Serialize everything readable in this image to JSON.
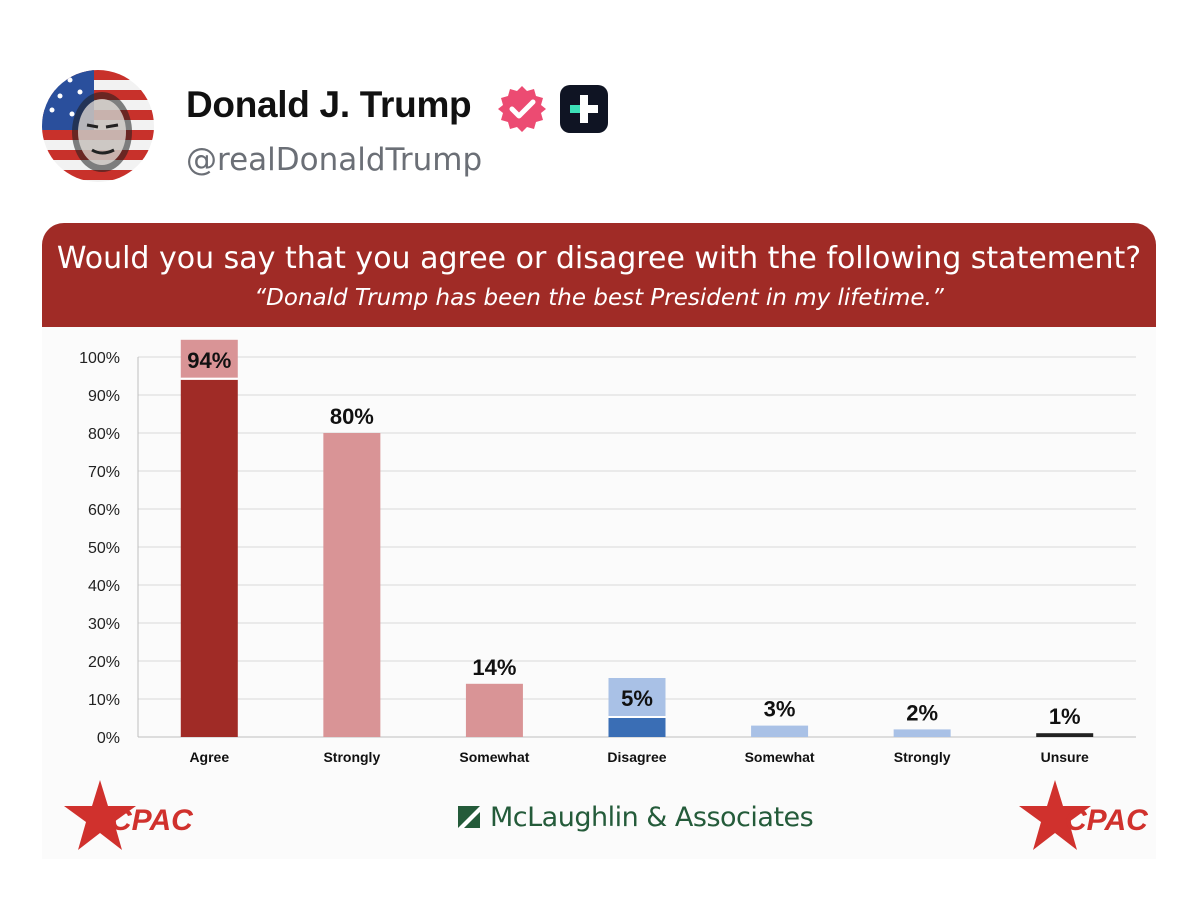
{
  "post": {
    "author_name": "Donald J. Trump",
    "handle": "@realDonaldTrump",
    "avatar_icon": "profile-avatar-flag-portrait",
    "verified_icon": "verified-badge-icon",
    "badge_icon": "plus-badge-icon"
  },
  "card": {
    "question": "Would you say that you agree or disagree with the following statement?",
    "statement": "“Donald Trump has been the best President in my lifetime.”",
    "footer_left_logo": "CPAC",
    "footer_center": "McLaughlin & Associates",
    "footer_right_logo": "CPAC"
  },
  "colors": {
    "banner": "#a02b26",
    "agree_dark": "#a02b26",
    "agree_light": "#d99496",
    "disagree_dark": "#3a6eb5",
    "disagree_light": "#a9c1e6",
    "unsure": "#222222"
  },
  "chart_data": {
    "type": "bar",
    "title": "",
    "xlabel": "",
    "ylabel": "",
    "ylim": [
      0,
      100
    ],
    "yticks": [
      "0%",
      "10%",
      "20%",
      "30%",
      "40%",
      "50%",
      "60%",
      "70%",
      "80%",
      "90%",
      "100%"
    ],
    "grid": true,
    "categories": [
      "Agree",
      "Strongly",
      "Somewhat",
      "Disagree",
      "Somewhat",
      "Strongly",
      "Unsure"
    ],
    "values": [
      94,
      80,
      14,
      5,
      3,
      2,
      1
    ],
    "labels": [
      "94%",
      "80%",
      "14%",
      "5%",
      "3%",
      "2%",
      "1%"
    ],
    "bar_colors": [
      "#a02b26",
      "#d99496",
      "#d99496",
      "#3a6eb5",
      "#a9c1e6",
      "#a9c1e6",
      "#222222"
    ],
    "label_box_colors": [
      "#d99496",
      null,
      null,
      "#a9c1e6",
      null,
      null,
      null
    ]
  }
}
